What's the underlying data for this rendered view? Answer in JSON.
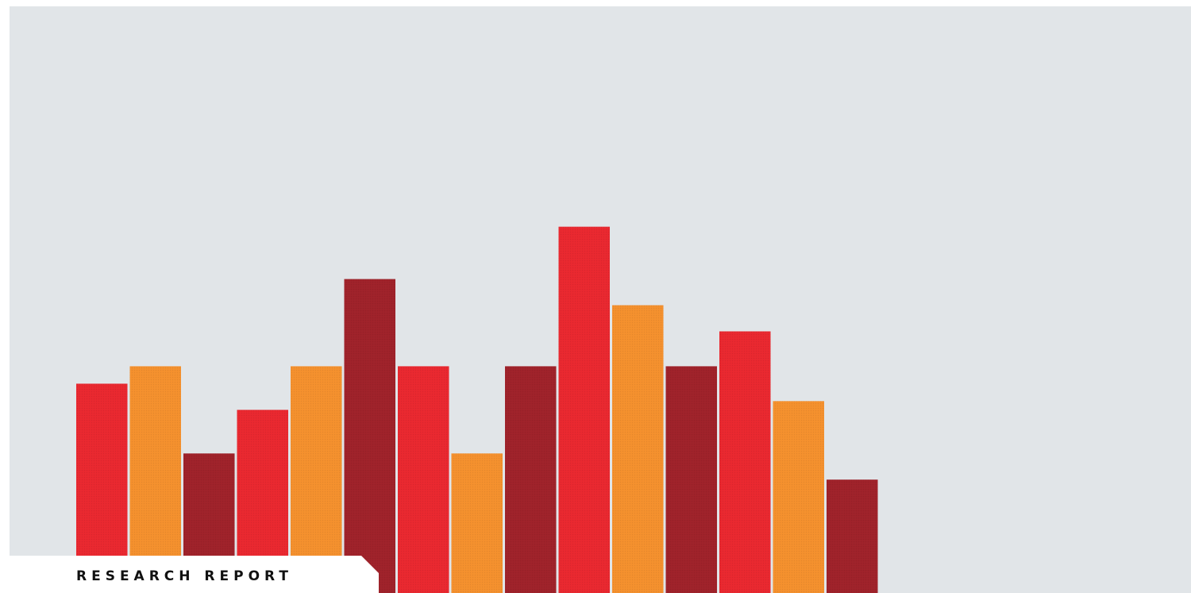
{
  "label": "RESEARCH REPORT",
  "colors": {
    "background": "#e1e5e8",
    "red": "#ea2930",
    "orange": "#f5912e",
    "dark_red": "#a0232b",
    "label_box": "#ffffff",
    "label_text": "#111111"
  },
  "chart_data": {
    "type": "bar",
    "title": "",
    "xlabel": "",
    "ylabel": "",
    "values": [
      8,
      9,
      4,
      6.5,
      9,
      14,
      9,
      4,
      9,
      17,
      12.5,
      9,
      11,
      7,
      2.5
    ],
    "bar_colors": [
      "red",
      "orange",
      "dark_red",
      "red",
      "orange",
      "dark_red",
      "red",
      "orange",
      "dark_red",
      "red",
      "orange",
      "dark_red",
      "red",
      "orange",
      "dark_red"
    ],
    "ylim": [
      -4,
      30
    ],
    "grid": false,
    "legend": "none"
  }
}
